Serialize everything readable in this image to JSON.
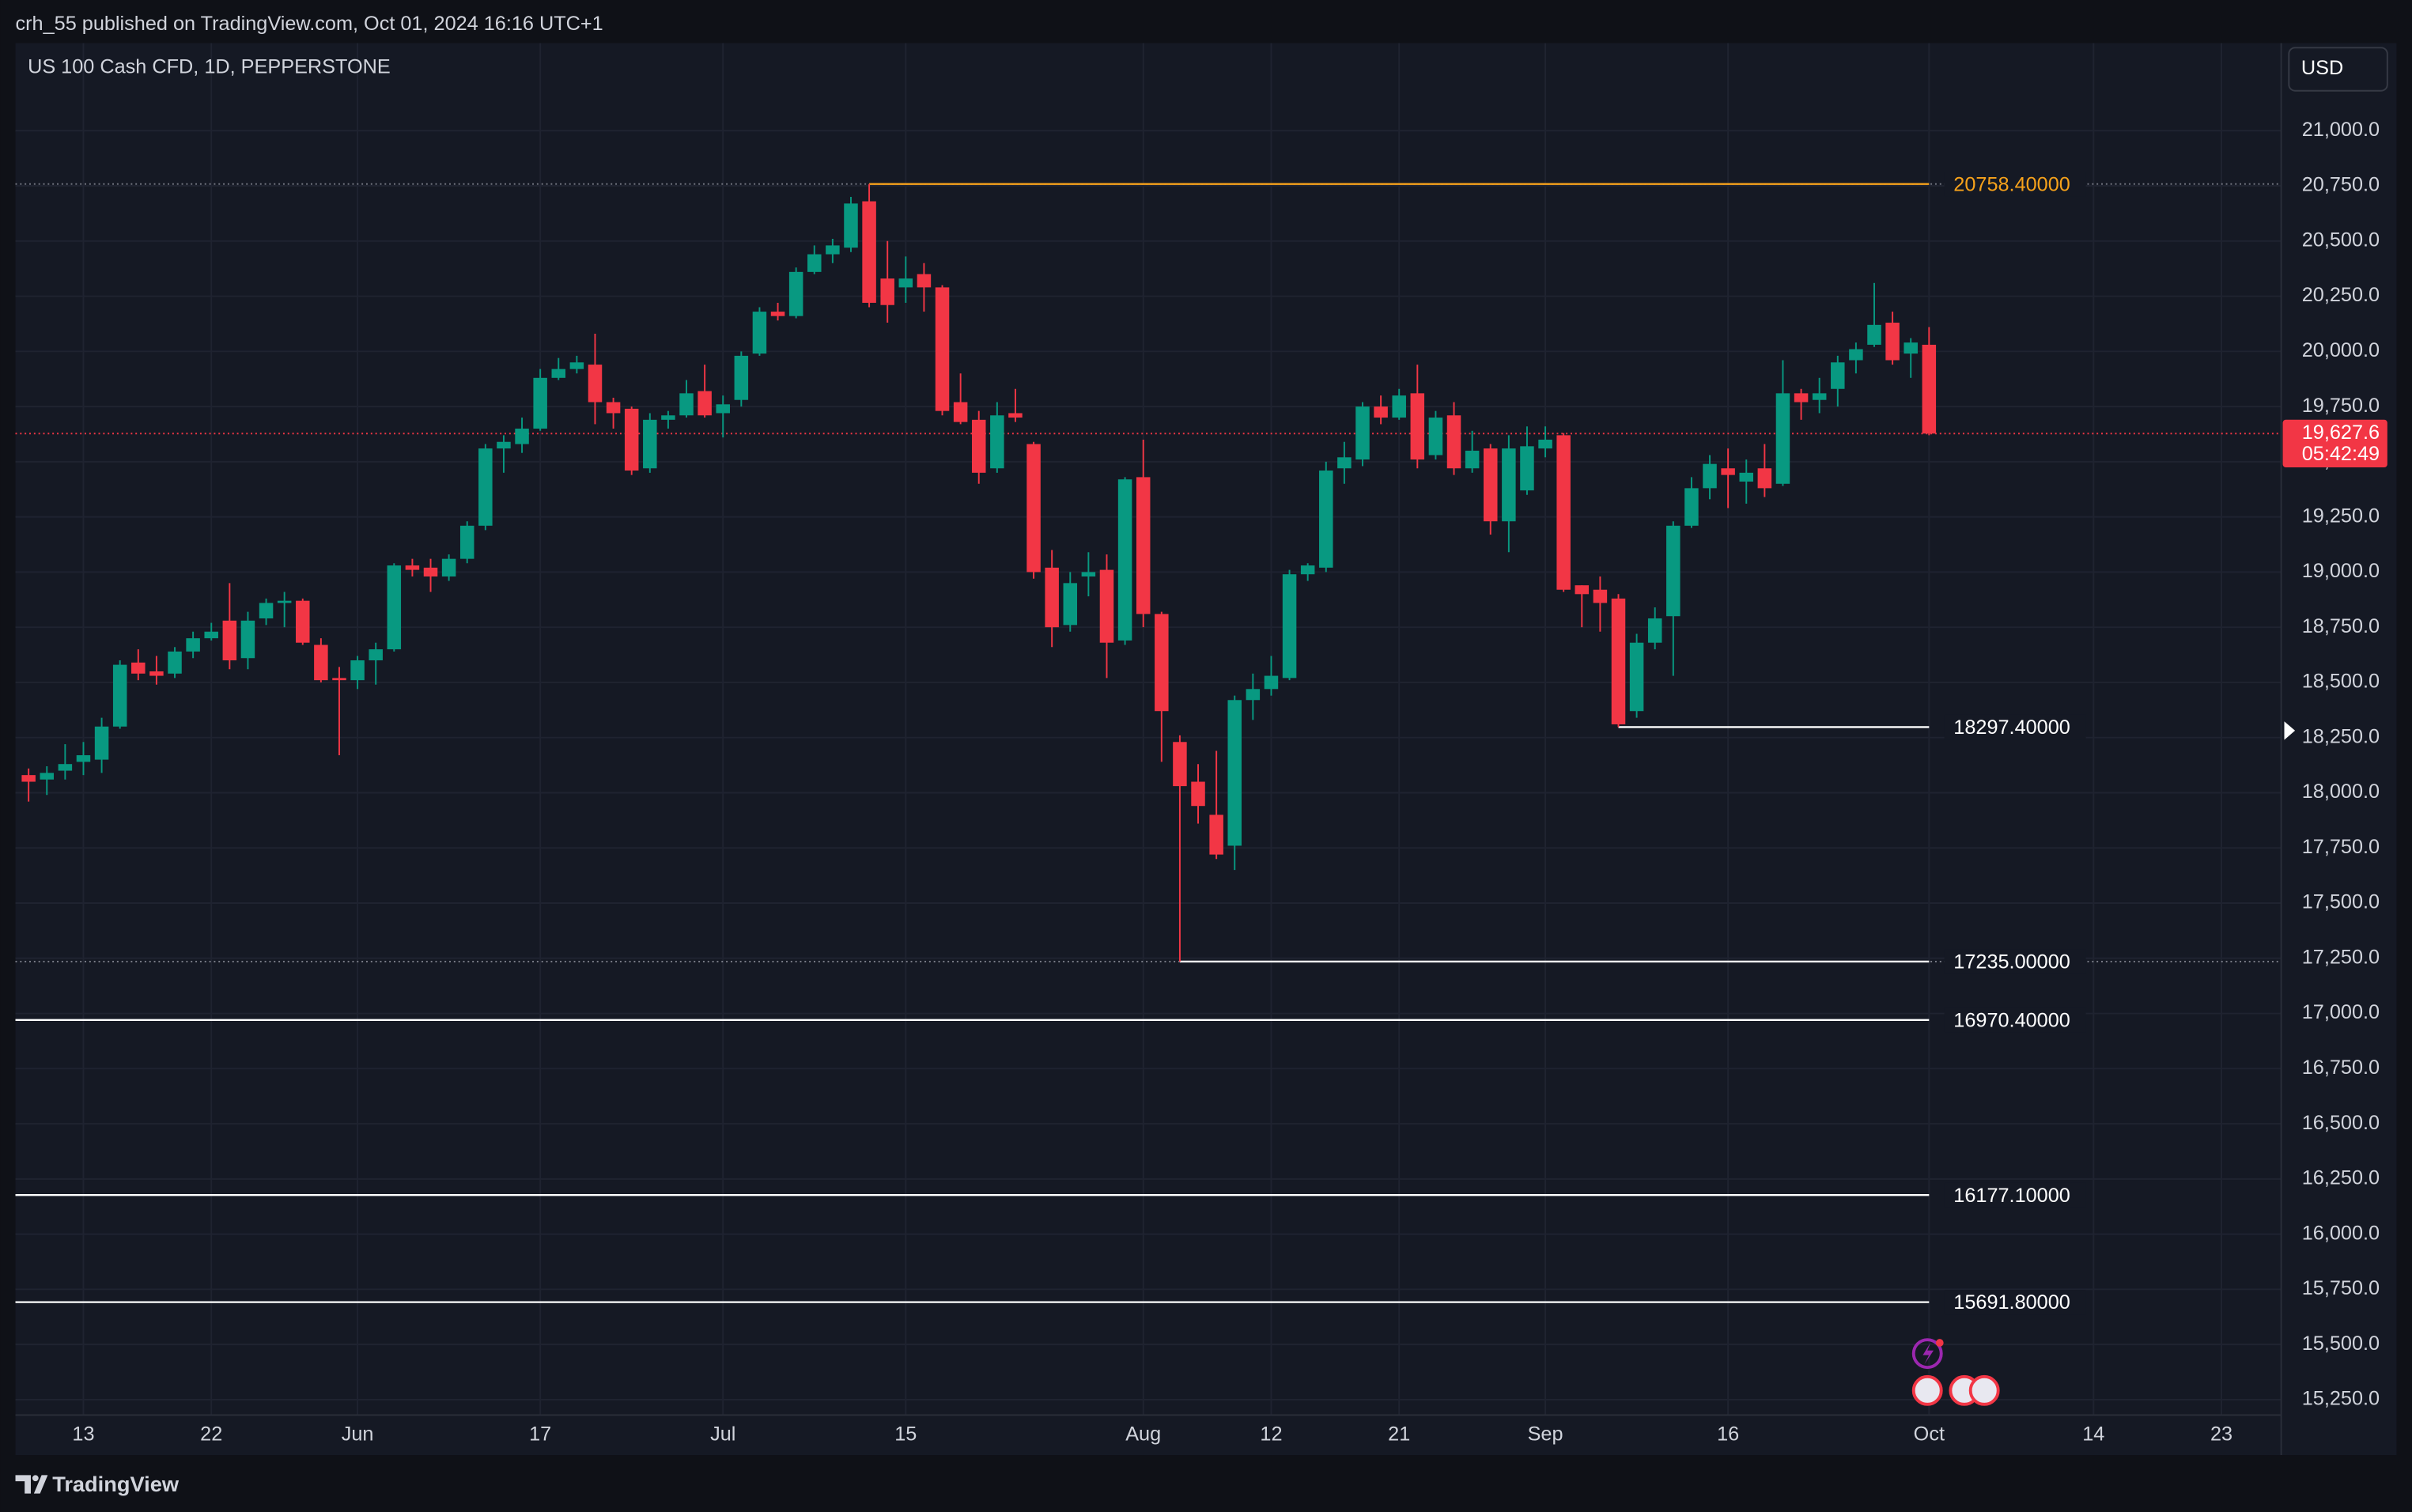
{
  "header": {
    "text": "crh_55 published on TradingView.com, Oct 01, 2024 16:16 UTC+1"
  },
  "footer": {
    "brand": "TradingView"
  },
  "chart_data": {
    "type": "candlestick",
    "title": "US 100 Cash CFD, 1D, PEPPERSTONE",
    "currency": "USD",
    "up_color": "#089981",
    "down_color": "#f23645",
    "grid": true,
    "xlim": [
      -0.72,
      123.27
    ],
    "xticks": [
      {
        "value": 3,
        "label": "13"
      },
      {
        "value": 10,
        "label": "22"
      },
      {
        "value": 18,
        "label": "Jun"
      },
      {
        "value": 28,
        "label": "17"
      },
      {
        "value": 38,
        "label": "Jul"
      },
      {
        "value": 48,
        "label": "15"
      },
      {
        "value": 61,
        "label": "Aug"
      },
      {
        "value": 68,
        "label": "12"
      },
      {
        "value": 75,
        "label": "21"
      },
      {
        "value": 83,
        "label": "Sep"
      },
      {
        "value": 93,
        "label": "16"
      },
      {
        "value": 104,
        "label": "Oct"
      },
      {
        "value": 113,
        "label": "14"
      },
      {
        "value": 120,
        "label": "23"
      }
    ],
    "ylim": [
      15180,
      21397
    ],
    "yticks": [
      {
        "value": 15250,
        "label": "15,250.0"
      },
      {
        "value": 15500,
        "label": "15,500.0"
      },
      {
        "value": 15750,
        "label": "15,750.0"
      },
      {
        "value": 16000,
        "label": "16,000.0"
      },
      {
        "value": 16250,
        "label": "16,250.0"
      },
      {
        "value": 16500,
        "label": "16,500.0"
      },
      {
        "value": 16750,
        "label": "16,750.0"
      },
      {
        "value": 17000,
        "label": "17,000.0"
      },
      {
        "value": 17250,
        "label": "17,250.0"
      },
      {
        "value": 17500,
        "label": "17,500.0"
      },
      {
        "value": 17750,
        "label": "17,750.0"
      },
      {
        "value": 18000,
        "label": "18,000.0"
      },
      {
        "value": 18250,
        "label": "18,250.0"
      },
      {
        "value": 18500,
        "label": "18,500.0"
      },
      {
        "value": 18750,
        "label": "18,750.0"
      },
      {
        "value": 19000,
        "label": "19,000.0"
      },
      {
        "value": 19250,
        "label": "19,250.0"
      },
      {
        "value": 19500,
        "label": "19,500.0"
      },
      {
        "value": 19750,
        "label": "19,750.0"
      },
      {
        "value": 20000,
        "label": "20,000.0"
      },
      {
        "value": 20250,
        "label": "20,250.0"
      },
      {
        "value": 20500,
        "label": "20,500.0"
      },
      {
        "value": 20750,
        "label": "20,750.0"
      },
      {
        "value": 21000,
        "label": "21,000.0"
      }
    ],
    "open": [
      18080,
      18060,
      18100,
      18140,
      18150,
      18300,
      18590,
      18550,
      18540,
      18640,
      18700,
      18780,
      18610,
      18790,
      18860,
      18870,
      18670,
      18520,
      18510,
      18600,
      18650,
      19030,
      19020,
      18980,
      19060,
      19210,
      19560,
      19580,
      19650,
      19880,
      19920,
      19940,
      19770,
      19740,
      19470,
      19690,
      19710,
      19820,
      19720,
      19780,
      19990,
      20180,
      20160,
      20360,
      20440,
      20470,
      20680,
      20330,
      20290,
      20350,
      20290,
      19770,
      19690,
      19470,
      19720,
      19580,
      19020,
      18760,
      18980,
      19010,
      18690,
      19430,
      18810,
      18230,
      18050,
      17900,
      17760,
      18420,
      18470,
      18520,
      18990,
      19020,
      19470,
      19510,
      19750,
      19700,
      19810,
      19530,
      19710,
      19470,
      19560,
      19230,
      19370,
      19560,
      19620,
      18940,
      18920,
      18880,
      18370,
      18680,
      18800,
      19210,
      19380,
      19470,
      19410,
      19470,
      19400,
      19810,
      19780,
      19830,
      19960,
      20030,
      20130,
      19990,
      20030
    ],
    "high": [
      18110,
      18120,
      18220,
      18230,
      18340,
      18600,
      18650,
      18620,
      18660,
      18730,
      18770,
      18950,
      18820,
      18880,
      18910,
      18880,
      18700,
      18570,
      18620,
      18680,
      19040,
      19060,
      19060,
      19080,
      19230,
      19580,
      19620,
      19700,
      19920,
      19970,
      19980,
      20080,
      19790,
      19750,
      19720,
      19730,
      19870,
      19940,
      19800,
      20000,
      20200,
      20220,
      20380,
      20480,
      20510,
      20700,
      20758.4,
      20500,
      20430,
      20400,
      20300,
      19900,
      19730,
      19770,
      19830,
      19590,
      19100,
      19000,
      19090,
      19080,
      19430,
      19600,
      18820,
      18260,
      18130,
      18190,
      18440,
      18540,
      18620,
      19010,
      19040,
      19500,
      19590,
      19770,
      19800,
      19830,
      19940,
      19730,
      19770,
      19640,
      19580,
      19620,
      19660,
      19660,
      19630,
      18940,
      18980,
      18900,
      18720,
      18840,
      19230,
      19430,
      19530,
      19560,
      19510,
      19580,
      19960,
      19830,
      19880,
      19980,
      20040,
      20310,
      20180,
      20060,
      20110
    ],
    "low": [
      17960,
      17990,
      18060,
      18080,
      18090,
      18290,
      18510,
      18490,
      18520,
      18610,
      18690,
      18560,
      18560,
      18760,
      18750,
      18670,
      18500,
      18170,
      18470,
      18490,
      18640,
      18980,
      18910,
      18960,
      19040,
      19190,
      19450,
      19540,
      19640,
      19870,
      19900,
      19670,
      19650,
      19440,
      19450,
      19650,
      19700,
      19700,
      19610,
      19750,
      19980,
      20140,
      20150,
      20350,
      20400,
      20450,
      20200,
      20130,
      20220,
      20180,
      19710,
      19670,
      19400,
      19450,
      19680,
      18970,
      18660,
      18730,
      18890,
      18520,
      18670,
      18750,
      18140,
      17235,
      17860,
      17700,
      17650,
      18330,
      18440,
      18510,
      18960,
      19000,
      19400,
      19480,
      19670,
      19690,
      19470,
      19510,
      19440,
      19450,
      19170,
      19090,
      19350,
      19520,
      18910,
      18750,
      18730,
      18297.4,
      18340,
      18650,
      18530,
      19200,
      19330,
      19290,
      19310,
      19340,
      19390,
      19690,
      19720,
      19750,
      19900,
      20020,
      19940,
      19880,
      19620
    ],
    "close": [
      18050,
      18090,
      18130,
      18170,
      18300,
      18580,
      18540,
      18530,
      18640,
      18700,
      18730,
      18600,
      18780,
      18860,
      18870,
      18680,
      18510,
      18510,
      18600,
      18650,
      19030,
      19010,
      18980,
      19060,
      19210,
      19560,
      19590,
      19650,
      19880,
      19920,
      19950,
      19770,
      19720,
      19460,
      19690,
      19710,
      19810,
      19710,
      19760,
      19980,
      20180,
      20160,
      20360,
      20440,
      20480,
      20670,
      20220,
      20210,
      20330,
      20290,
      19730,
      19680,
      19450,
      19710,
      19700,
      19000,
      18750,
      18950,
      19000,
      18680,
      19420,
      18810,
      18370,
      18030,
      17940,
      17720,
      18420,
      18470,
      18530,
      18990,
      19030,
      19460,
      19520,
      19750,
      19700,
      19800,
      19510,
      19700,
      19470,
      19550,
      19230,
      19560,
      19570,
      19600,
      18920,
      18900,
      18860,
      18310,
      18680,
      18790,
      19210,
      19380,
      19490,
      19440,
      19450,
      19380,
      19810,
      19770,
      19810,
      19950,
      20010,
      20120,
      19960,
      20040,
      19627.6
    ],
    "levels": [
      {
        "value": 20758.4,
        "label": "20758.40000",
        "color": "#f7a21b",
        "extended": true
      },
      {
        "value": 18297.4,
        "label": "18297.40000",
        "color": "#ffffff",
        "extended": false
      },
      {
        "value": 17235,
        "label": "17235.00000",
        "color": "#ffffff",
        "extended": true
      },
      {
        "value": 16970.4,
        "label": "16970.40000",
        "color": "#ffffff",
        "extended": false
      },
      {
        "value": 16177.1,
        "label": "16177.10000",
        "color": "#ffffff",
        "extended": false
      },
      {
        "value": 15691.8,
        "label": "15691.80000",
        "color": "#ffffff",
        "extended": false
      }
    ],
    "last_price": {
      "value": 19627.6,
      "label": "19,627.6",
      "countdown": "05:42:49",
      "color": "#f23645"
    }
  }
}
